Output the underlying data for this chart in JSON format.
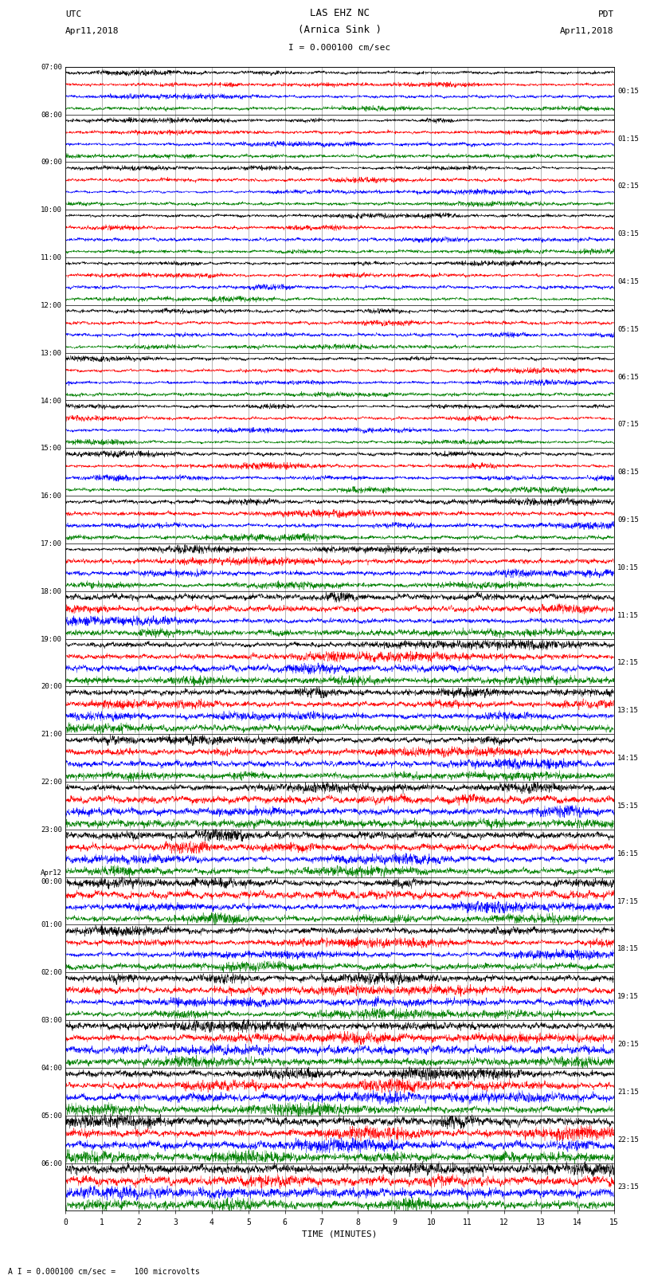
{
  "title_line1": "LAS EHZ NC",
  "title_line2": "(Arnica Sink )",
  "scale_text": "I = 0.000100 cm/sec",
  "left_label_top": "UTC",
  "left_label_date": "Apr11,2018",
  "right_label_top": "PDT",
  "right_label_date": "Apr11,2018",
  "bottom_label": "TIME (MINUTES)",
  "bottom_note": "A I = 0.000100 cm/sec =    100 microvolts",
  "utc_times": [
    "07:00",
    "08:00",
    "09:00",
    "10:00",
    "11:00",
    "12:00",
    "13:00",
    "14:00",
    "15:00",
    "16:00",
    "17:00",
    "18:00",
    "19:00",
    "20:00",
    "21:00",
    "22:00",
    "23:00",
    "Apr12\n00:00",
    "01:00",
    "02:00",
    "03:00",
    "04:00",
    "05:00",
    "06:00"
  ],
  "pdt_times": [
    "00:15",
    "01:15",
    "02:15",
    "03:15",
    "04:15",
    "05:15",
    "06:15",
    "07:15",
    "08:15",
    "09:15",
    "10:15",
    "11:15",
    "12:15",
    "13:15",
    "14:15",
    "15:15",
    "16:15",
    "17:15",
    "18:15",
    "19:15",
    "20:15",
    "21:15",
    "22:15",
    "23:15"
  ],
  "trace_color_order": [
    "black",
    "red",
    "blue",
    "green"
  ],
  "n_rows": 24,
  "traces_per_row": 4,
  "minutes": 15,
  "fig_width": 8.5,
  "fig_height": 16.13,
  "bg_color": "white",
  "noise_seed": 42,
  "amplitude_scale_row": [
    0.3,
    0.3,
    0.3,
    0.3,
    0.3,
    0.3,
    0.3,
    0.3,
    0.35,
    0.4,
    0.45,
    0.5,
    0.55,
    0.55,
    0.55,
    0.6,
    0.6,
    0.6,
    0.55,
    0.6,
    0.65,
    0.7,
    0.75,
    0.75
  ],
  "n_samples": 3000,
  "linewidth": 0.3
}
